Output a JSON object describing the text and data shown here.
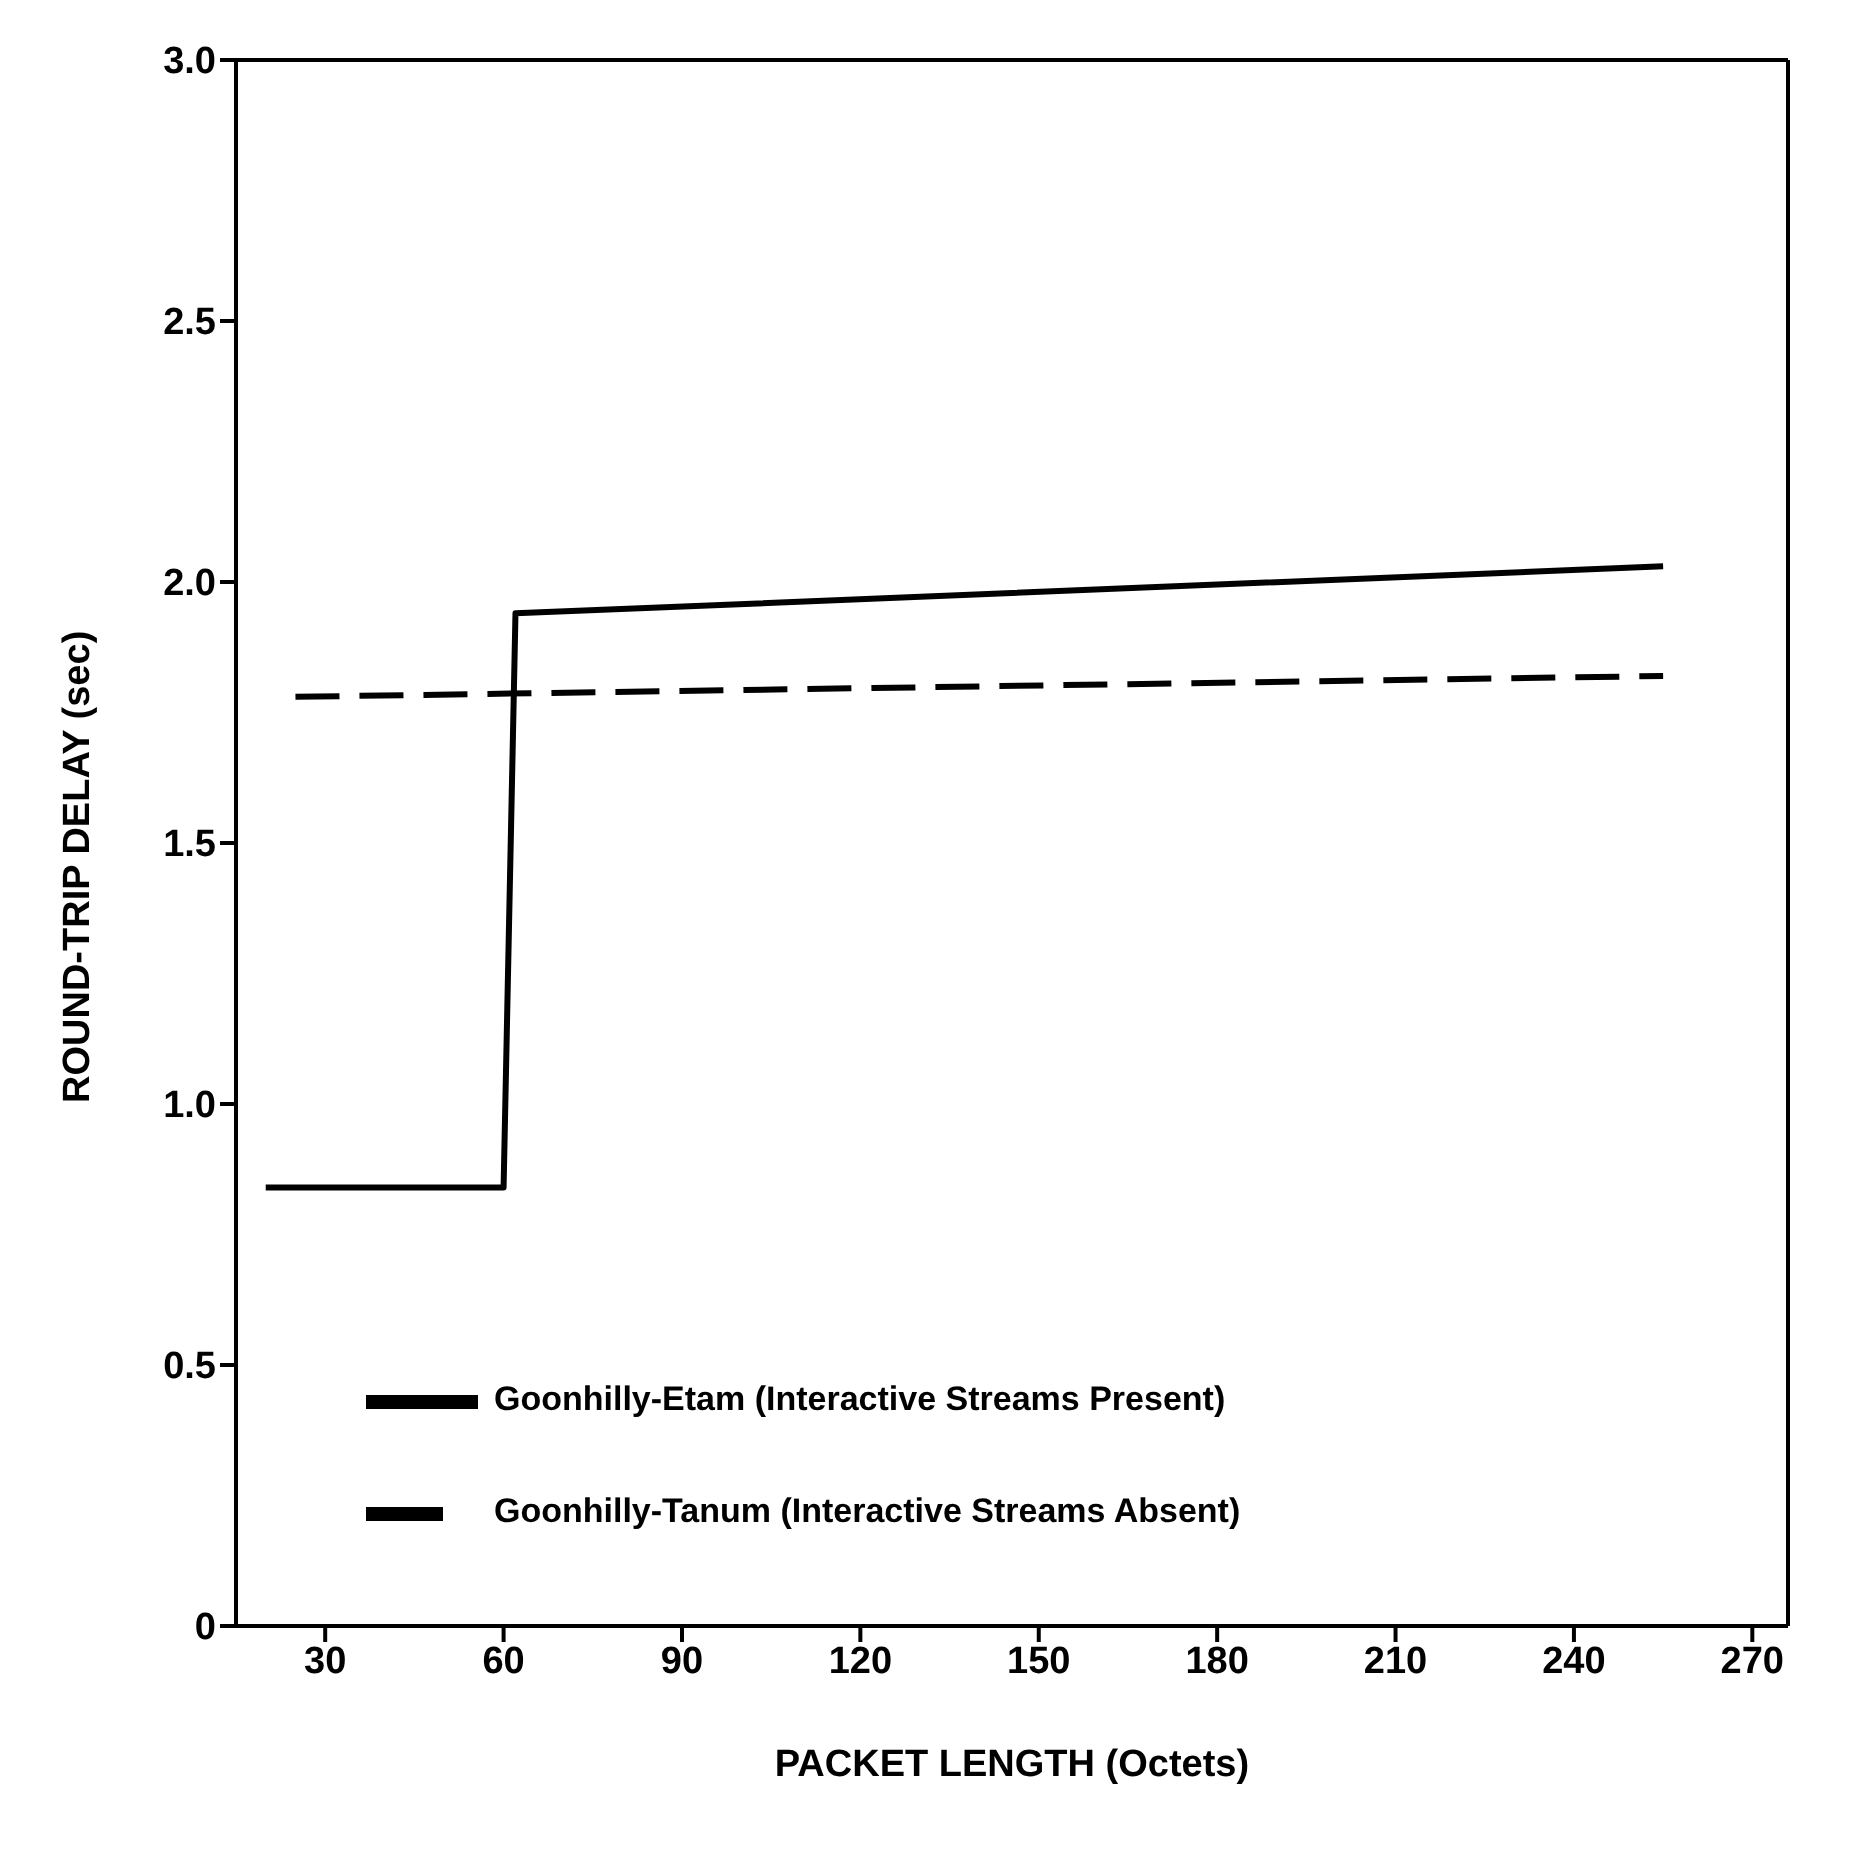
{
  "chart_data": {
    "type": "line",
    "xlabel": "PACKET LENGTH (Octets)",
    "ylabel": "ROUND-TRIP DELAY (sec)",
    "xlim": [
      15,
      276
    ],
    "xticks": [
      30,
      60,
      90,
      120,
      150,
      180,
      210,
      240,
      270
    ],
    "ylim": [
      0,
      3
    ],
    "yticks": [
      0,
      0.5,
      {
        "value": 1,
        "label": "1.0"
      },
      1.5,
      {
        "value": 2,
        "label": "2.0"
      },
      2.5,
      {
        "value": 3,
        "label": "3.0"
      }
    ],
    "series": [
      {
        "name": "Goonhilly-Etam (Interactive Streams Present)",
        "color": "#000000",
        "line_style": "solid",
        "x": [
          20,
          60,
          62,
          255
        ],
        "values": [
          0.84,
          0.84,
          1.94,
          2.03
        ]
      },
      {
        "name": "Goonhilly-Tanum (Interactive Streams Absent)",
        "color": "#000000",
        "line_style": "dashed",
        "x": [
          25,
          255
        ],
        "values": [
          1.78,
          1.82
        ]
      }
    ],
    "legend": "bottom left",
    "marker": "none"
  }
}
